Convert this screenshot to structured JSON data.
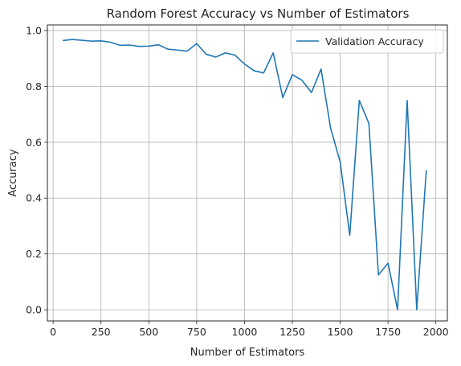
{
  "chart_data": {
    "type": "line",
    "title": "Random Forest Accuracy vs Number of Estimators",
    "xlabel": "Number of Estimators",
    "ylabel": "Accuracy",
    "xlim": [
      -30,
      2060
    ],
    "ylim": [
      -0.04,
      1.02
    ],
    "xticks": [
      0,
      250,
      500,
      750,
      1000,
      1250,
      1500,
      1750,
      2000
    ],
    "yticks": [
      0.0,
      0.2,
      0.4,
      0.6,
      0.8,
      1.0
    ],
    "grid": true,
    "legend_position": "top-right",
    "series": [
      {
        "name": "Validation Accuracy",
        "color": "#1f77b4",
        "x": [
          50,
          100,
          150,
          200,
          250,
          300,
          350,
          400,
          450,
          500,
          550,
          600,
          650,
          700,
          750,
          800,
          850,
          900,
          950,
          1000,
          1050,
          1100,
          1150,
          1200,
          1250,
          1300,
          1350,
          1400,
          1450,
          1500,
          1550,
          1600,
          1650,
          1700,
          1750,
          1800,
          1850,
          1900,
          1950
        ],
        "y": [
          0.964,
          0.968,
          0.965,
          0.962,
          0.963,
          0.958,
          0.947,
          0.948,
          0.943,
          0.944,
          0.949,
          0.933,
          0.93,
          0.926,
          0.953,
          0.915,
          0.905,
          0.92,
          0.912,
          0.88,
          0.856,
          0.848,
          0.92,
          0.76,
          0.842,
          0.822,
          0.778,
          0.862,
          0.65,
          0.53,
          0.267,
          0.75,
          0.667,
          0.125,
          0.167,
          0.0,
          0.75,
          0.0,
          0.5
        ]
      }
    ]
  }
}
